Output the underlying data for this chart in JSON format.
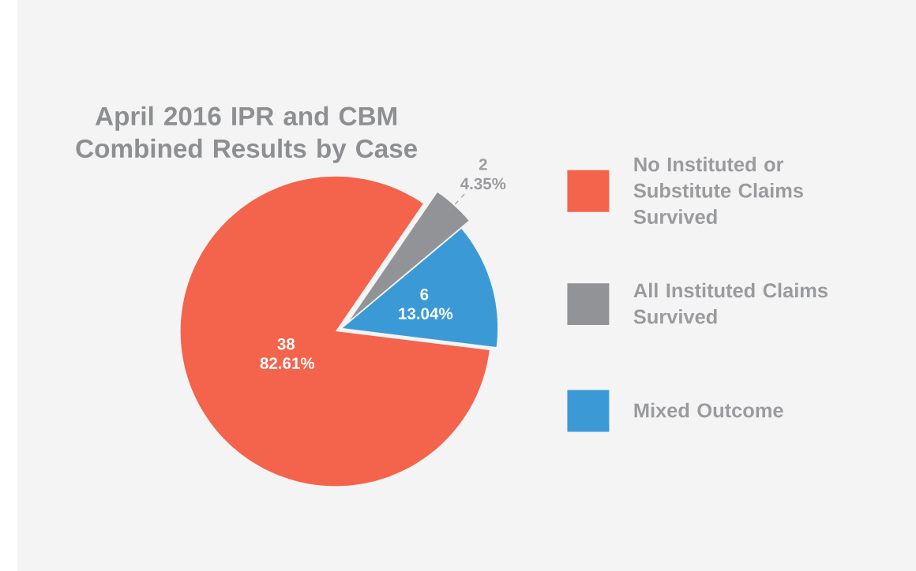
{
  "chart_data": {
    "type": "pie",
    "title": "April 2016 IPR and CBM Combined Results by Case",
    "categories": [
      "No Instituted or Substitute Claims Survived",
      "All Instituted Claims Survived",
      "Mixed Outcome"
    ],
    "values": [
      38,
      2,
      6
    ],
    "colors": [
      "#f4634b",
      "#929396",
      "#3b9ad6"
    ],
    "value_labels": [
      "38 82.61%",
      "2 4.35%",
      "6 13.04%"
    ],
    "legend": "right"
  }
}
